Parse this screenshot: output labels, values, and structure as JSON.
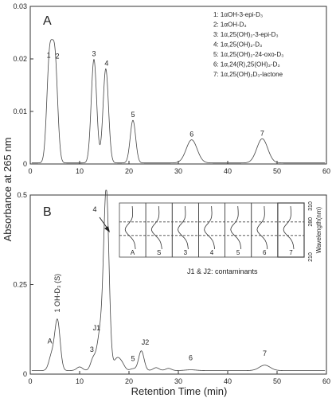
{
  "figure": {
    "ylabel": "Absorbance at 265 nm",
    "xlabel": "Retention Time (min)"
  },
  "chart_data": [
    {
      "type": "line",
      "panel_label": "A",
      "xlim": [
        0,
        60
      ],
      "ylim": [
        0,
        0.03
      ],
      "x_ticks": [
        "0",
        "10",
        "20",
        "30",
        "40",
        "50",
        "60"
      ],
      "y_ticks": [
        "0",
        "0.01",
        "0.02",
        "0.03"
      ],
      "legend": [
        "1: 1αOH-3-epi-D₃",
        "2: 1αOH-D₃",
        "3: 1α,25(OH)₂-3-epi-D₃",
        "4: 1α,25(OH)₂-D₃",
        "5: 1α,25(OH)₂-24-oxo-D₃",
        "6: 1α,24(R),25(OH)₃-D₃",
        "7: 1α,25(OH)₂D₃-lactone"
      ],
      "peaks": [
        {
          "label": "1",
          "x": 3.9,
          "y": 0.0196
        },
        {
          "label": "2",
          "x": 5.0,
          "y": 0.0195
        },
        {
          "label": "3",
          "x": 12.9,
          "y": 0.0199
        },
        {
          "label": "4",
          "x": 15.3,
          "y": 0.0181
        },
        {
          "label": "5",
          "x": 20.8,
          "y": 0.0083
        },
        {
          "label": "6",
          "x": 32.7,
          "y": 0.0046
        },
        {
          "label": "7",
          "x": 47.0,
          "y": 0.0048
        }
      ],
      "baseline": 0.0002
    },
    {
      "type": "line",
      "panel_label": "B",
      "xlim": [
        0,
        60
      ],
      "ylim": [
        0,
        0.5
      ],
      "x_ticks": [
        "0",
        "10",
        "20",
        "30",
        "40",
        "50",
        "60"
      ],
      "y_ticks": [
        "0",
        "0.25",
        "0.5"
      ],
      "contaminants_note": "J1 & J2: contaminants",
      "peaks": [
        {
          "label": "A",
          "x": 4.3,
          "y": 0.05
        },
        {
          "label": "1 OH-D₃ (S)",
          "x": 5.5,
          "y": 0.15
        },
        {
          "label": "3",
          "x": 12.8,
          "y": 0.045
        },
        {
          "label": "J1",
          "x": 14.1,
          "y": 0.105
        },
        {
          "label": "4",
          "x": 15.4,
          "y": 0.515
        },
        {
          "label": "5",
          "x": 20.8,
          "y": 0.015
        },
        {
          "label": "J2",
          "x": 22.5,
          "y": 0.065
        },
        {
          "label": "6",
          "x": 32.5,
          "y": 0.012
        },
        {
          "label": "7",
          "x": 47.5,
          "y": 0.025
        }
      ],
      "extra_bumps": [
        {
          "x": 10.0,
          "y": 0.01
        },
        {
          "x": 17.5,
          "y": 0.03
        },
        {
          "x": 18.5,
          "y": 0.02
        },
        {
          "x": 25.5,
          "y": 0.008
        },
        {
          "x": 28.0,
          "y": 0.006
        }
      ],
      "baseline": 0.01,
      "uv_inset": {
        "labels": [
          "A",
          "S",
          "3",
          "4",
          "5",
          "6",
          "7"
        ],
        "ylabel": "Wavelength(nm)",
        "y_ticks": [
          "210",
          "280",
          "310"
        ]
      }
    }
  ]
}
